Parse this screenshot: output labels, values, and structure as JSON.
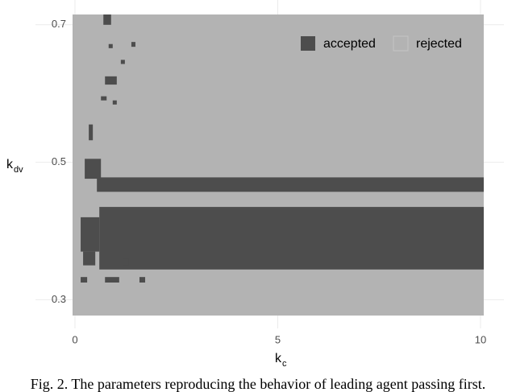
{
  "chart_data": {
    "type": "tile",
    "xlabel": "k",
    "xlabel_sub": "c",
    "ylabel": "k",
    "ylabel_sub": "dv",
    "caption": "Fig. 2. The parameters reproducing the behavior of leading agent passing first.",
    "xlim": [
      -0.06,
      10.08
    ],
    "ylim": [
      0.277,
      0.715
    ],
    "xticks": [
      0,
      5,
      10
    ],
    "yticks": [
      0.3,
      0.5,
      0.7
    ],
    "legend": "top-right",
    "series": [
      {
        "name": "rejected",
        "color": "#b3b3b3",
        "rects": [
          {
            "x0": -0.06,
            "x1": 10.08,
            "y0": 0.277,
            "y1": 0.715
          }
        ]
      },
      {
        "name": "accepted",
        "color": "#4d4d4d",
        "rects": [
          {
            "x0": 0.54,
            "x1": 10.08,
            "y0": 0.457,
            "y1": 0.478
          },
          {
            "x0": 0.6,
            "x1": 10.08,
            "y0": 0.344,
            "y1": 0.435
          },
          {
            "x0": 0.24,
            "x1": 0.64,
            "y0": 0.476,
            "y1": 0.505
          },
          {
            "x0": 0.14,
            "x1": 0.6,
            "y0": 0.37,
            "y1": 0.42
          },
          {
            "x0": 0.2,
            "x1": 0.5,
            "y0": 0.35,
            "y1": 0.37
          },
          {
            "x0": 0.7,
            "x1": 0.89,
            "y0": 0.7,
            "y1": 0.715
          },
          {
            "x0": 0.74,
            "x1": 1.09,
            "y0": 0.325,
            "y1": 0.333
          },
          {
            "x0": 0.14,
            "x1": 0.3,
            "y0": 0.325,
            "y1": 0.333
          },
          {
            "x0": 1.59,
            "x1": 1.73,
            "y0": 0.325,
            "y1": 0.333
          },
          {
            "x0": 1.19,
            "x1": 1.33,
            "y0": 0.35,
            "y1": 0.36
          },
          {
            "x0": 0.34,
            "x1": 0.44,
            "y0": 0.532,
            "y1": 0.555
          },
          {
            "x0": 0.74,
            "x1": 1.03,
            "y0": 0.613,
            "y1": 0.625
          },
          {
            "x0": 0.93,
            "x1": 1.03,
            "y0": 0.584,
            "y1": 0.59
          },
          {
            "x0": 1.13,
            "x1": 1.23,
            "y0": 0.643,
            "y1": 0.649
          },
          {
            "x0": 1.39,
            "x1": 1.49,
            "y0": 0.668,
            "y1": 0.675
          },
          {
            "x0": 0.83,
            "x1": 0.93,
            "y0": 0.666,
            "y1": 0.672
          },
          {
            "x0": 0.64,
            "x1": 0.78,
            "y0": 0.59,
            "y1": 0.596
          }
        ]
      }
    ]
  }
}
